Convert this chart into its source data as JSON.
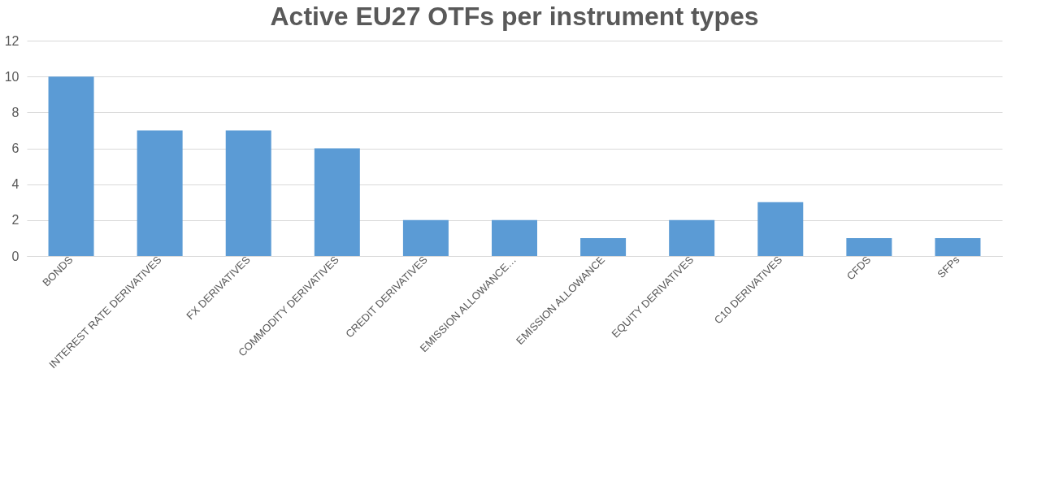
{
  "chart_data": {
    "type": "bar",
    "title": "Active EU27 OTFs per instrument types",
    "categories": [
      "BONDS",
      "INTEREST RATE DERIVATIVES",
      "FX DERIVATIVES",
      "COMMODITY DERIVATIVES",
      "CREDIT DERIVATIVES",
      "EMISSION ALLOWANCE…",
      "EMISSION ALLOWANCE",
      "EQUITY DERIVATIVES",
      "C10 DERIVATIVES",
      "CFDS",
      "SFPs"
    ],
    "values": [
      10,
      7,
      7,
      6,
      2,
      2,
      1,
      2,
      3,
      1,
      1
    ],
    "color": "#5b9bd5",
    "ylim": [
      0,
      12
    ],
    "yticks": [
      0,
      2,
      4,
      6,
      8,
      10,
      12
    ],
    "grid": "y"
  }
}
